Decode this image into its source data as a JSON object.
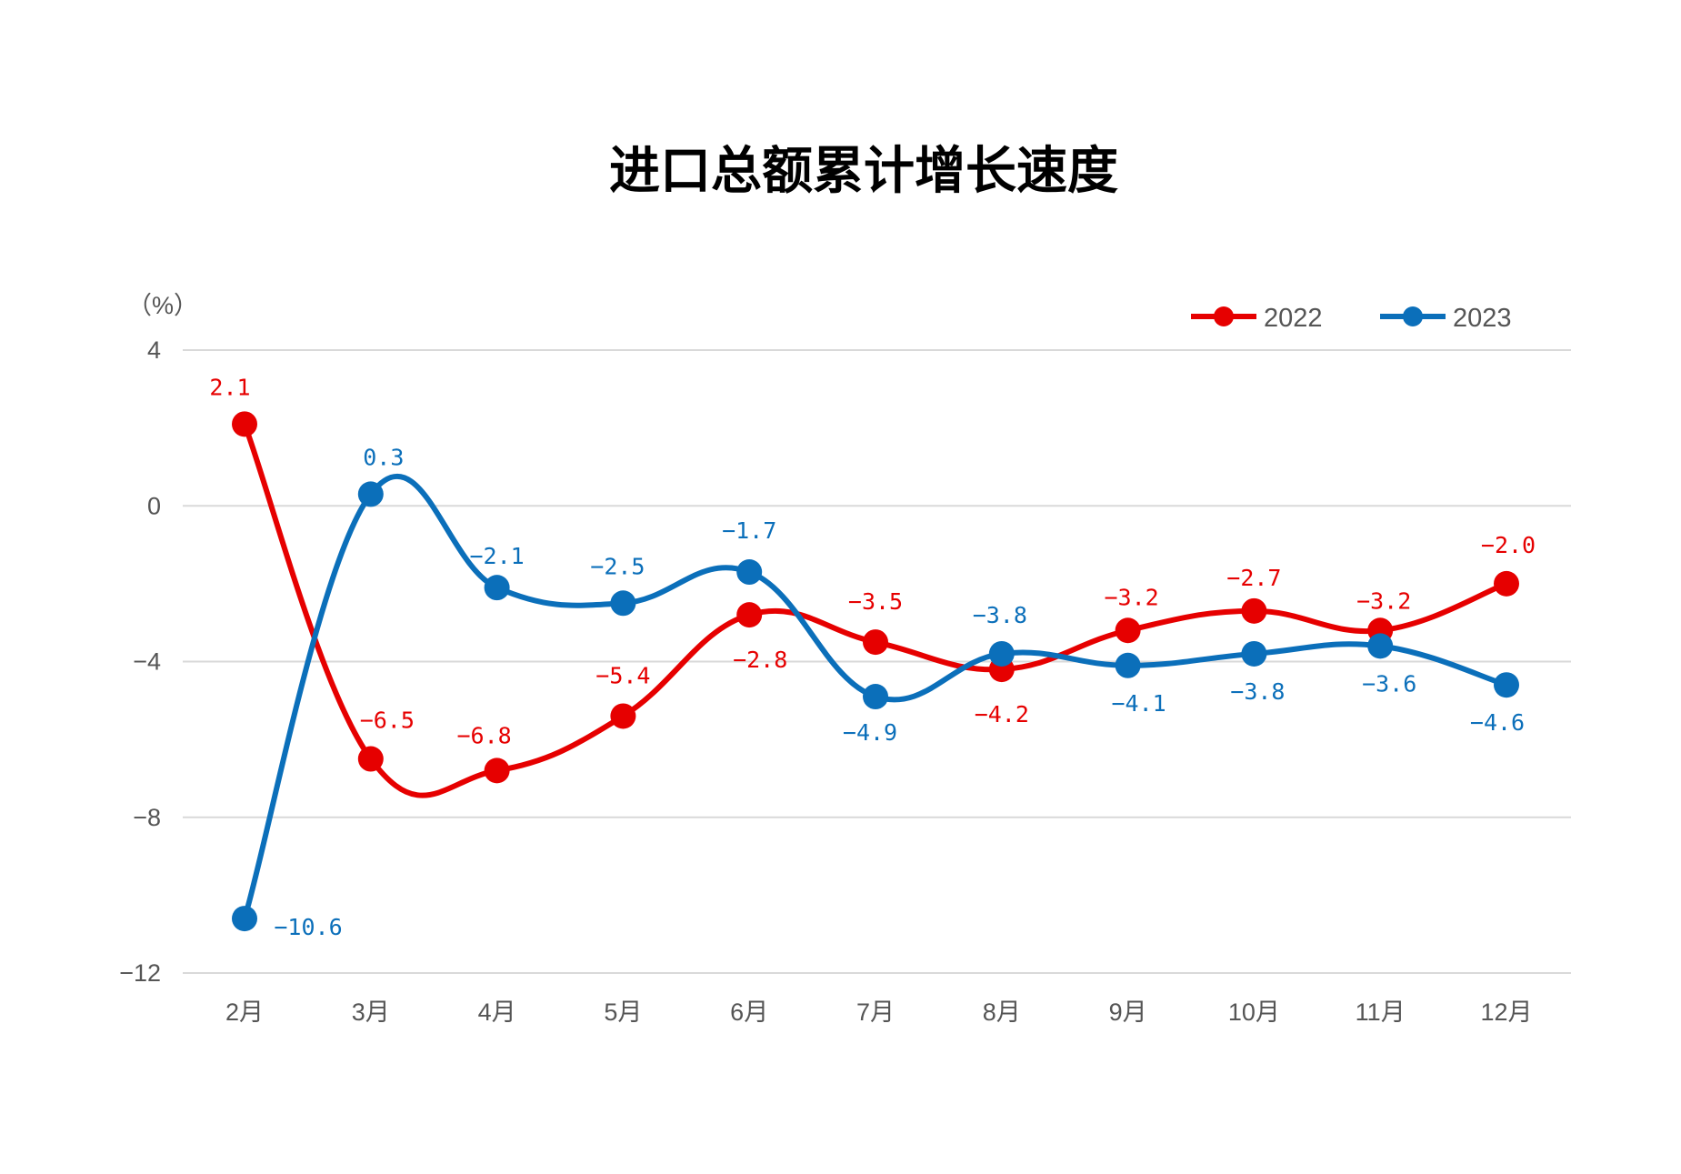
{
  "chart_data": {
    "type": "line",
    "title": "进口总额累计增长速度",
    "ylabel": "（%）",
    "xlabel": "",
    "categories": [
      "2月",
      "3月",
      "4月",
      "5月",
      "6月",
      "7月",
      "8月",
      "9月",
      "10月",
      "11月",
      "12月"
    ],
    "ylim": [
      -12,
      4
    ],
    "yticks": [
      4,
      0,
      -4,
      -8,
      -12
    ],
    "grid": true,
    "legend_position": "top-right",
    "smooth": true,
    "series": [
      {
        "name": "2022",
        "color": "#e60000",
        "values": [
          2.1,
          -6.5,
          -6.8,
          -5.4,
          -2.8,
          -3.5,
          -4.2,
          -3.2,
          -2.7,
          -3.2,
          -2.0
        ]
      },
      {
        "name": "2023",
        "color": "#0b6fba",
        "values": [
          -10.6,
          0.3,
          -2.1,
          -2.5,
          -1.7,
          -4.9,
          -3.8,
          -4.1,
          -3.8,
          -3.6,
          -4.6
        ]
      }
    ]
  }
}
